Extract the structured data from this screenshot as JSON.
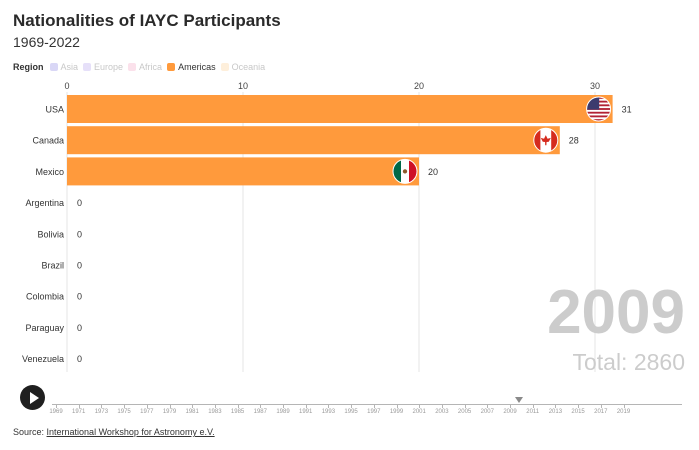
{
  "title": "Nationalities of IAYC Participants",
  "subtitle": "1969-2022",
  "legend": {
    "title": "Region",
    "items": [
      {
        "label": "Asia",
        "color": "#c9c6f2",
        "active": false
      },
      {
        "label": "Europe",
        "color": "#dcd3f7",
        "active": false
      },
      {
        "label": "Africa",
        "color": "#f9d4e2",
        "active": false
      },
      {
        "label": "Americas",
        "color": "#ff9a3c",
        "active": true
      },
      {
        "label": "Oceania",
        "color": "#fde8cc",
        "active": false
      }
    ]
  },
  "current_year": "2009",
  "total_text": "Total: 2860",
  "source": {
    "prefix": "Source: ",
    "link_text": "International Workshop for Astronomy e.V."
  },
  "timeline": {
    "labels": [
      "1969",
      "1971",
      "1973",
      "1975",
      "1977",
      "1979",
      "1981",
      "1983",
      "1985",
      "1987",
      "1989",
      "1991",
      "1993",
      "1995",
      "1997",
      "1999",
      "2001",
      "2003",
      "2005",
      "2007",
      "2009",
      "2011",
      "2013",
      "2015",
      "2017",
      "2019"
    ],
    "selected": "2009"
  },
  "chart_data": {
    "type": "bar",
    "orientation": "horizontal",
    "title": "Nationalities of IAYC Participants",
    "subtitle": "1969-2022",
    "categories": [
      "USA",
      "Canada",
      "Mexico",
      "Argentina",
      "Bolivia",
      "Brazil",
      "Colombia",
      "Paraguay",
      "Venezuela"
    ],
    "values": [
      31,
      28,
      20,
      0,
      0,
      0,
      0,
      0,
      0
    ],
    "flags": [
      "us-flag-icon",
      "canada-flag-icon",
      "mexico-flag-icon",
      null,
      null,
      null,
      null,
      null,
      null
    ],
    "xlim": [
      0,
      32
    ],
    "xticks": [
      0,
      10,
      20,
      30
    ],
    "bar_color": "#ff9a3c",
    "grid": true,
    "axis_position": "top",
    "legend_position": "top-left"
  }
}
